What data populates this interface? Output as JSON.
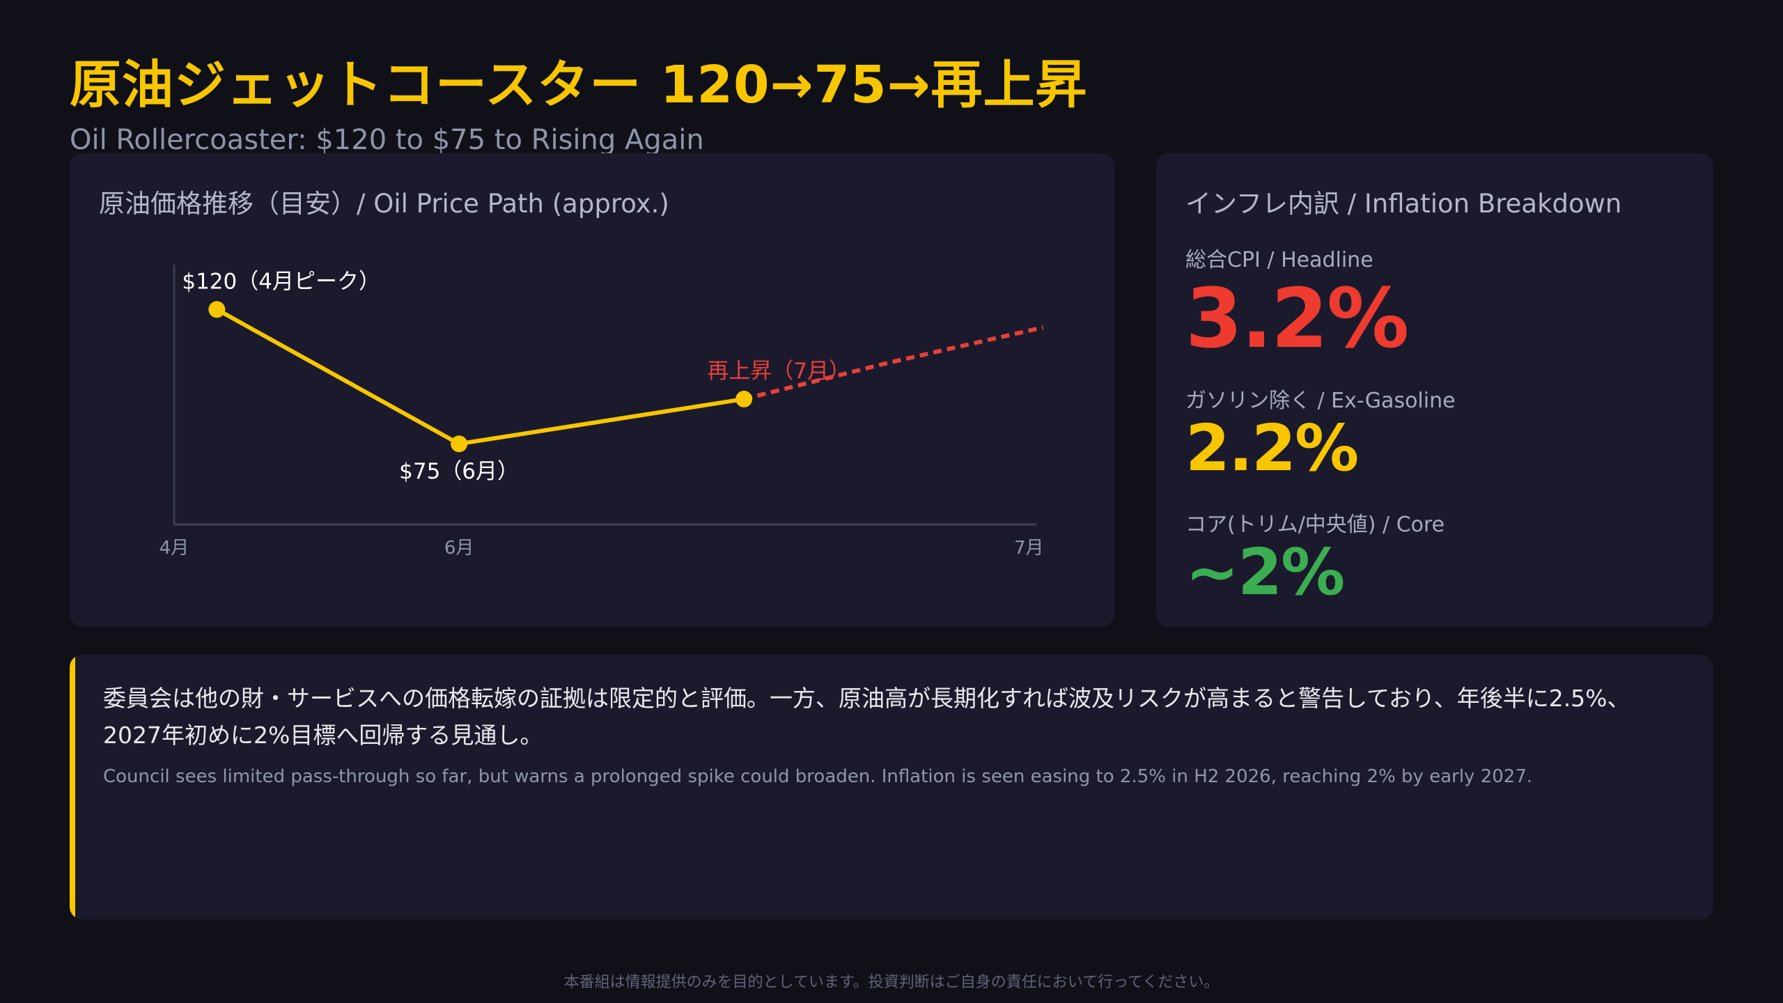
{
  "header": {
    "title": "原油ジェットコースター 120→75→再上昇",
    "subtitle": "Oil Rollercoaster: $120 to $75 to Rising Again"
  },
  "chart_data": {
    "type": "line",
    "title": "原油価格推移（目安）/ Oil Price Path (approx.)",
    "x_ticks": [
      "4月",
      "6月",
      "7月"
    ],
    "x_tick_positions": [
      4,
      6,
      10
    ],
    "series": [
      {
        "kind": "actual",
        "color": "#f7c600",
        "x": [
          4.3,
          6,
          8
        ],
        "y": [
          120,
          75,
          90
        ]
      },
      {
        "kind": "projection",
        "color": "#e8403a",
        "style": "dashed",
        "x": [
          8,
          9.0,
          10.1
        ],
        "y": [
          90,
          102,
          114
        ]
      }
    ],
    "annotations": [
      {
        "text": "$120（4月ピーク）",
        "x": 4.3,
        "y": 120,
        "position": "above-right",
        "color": "#ffffff"
      },
      {
        "text": "$75（6月）",
        "x": 6,
        "y": 75,
        "position": "below",
        "color": "#ffffff"
      },
      {
        "text": "再上昇（7月）",
        "x": 8,
        "y": 90,
        "position": "above",
        "color": "#e8403a"
      }
    ],
    "xlim": [
      4,
      10.6
    ],
    "ylim": [
      48,
      135
    ],
    "grid": false
  },
  "inflation": {
    "title": "インフレ内訳 / Inflation Breakdown",
    "metrics": [
      {
        "label": "総合CPI / Headline",
        "value": "3.2%",
        "color": "#ef3b2f"
      },
      {
        "label": "ガソリン除く / Ex-Gasoline",
        "value": "2.2%",
        "color": "#f7c600"
      },
      {
        "label": "コア(トリム/中央値) / Core",
        "value": "~2%",
        "color": "#3cae52"
      }
    ]
  },
  "note": {
    "ja": "委員会は他の財・サービスへの価格転嫁の証拠は限定的と評価。一方、原油高が長期化すれば波及リスクが高まると警告しており、年後半に2.5%、2027年初めに2%目標へ回帰する見通し。",
    "en": "Council sees limited pass-through so far, but warns a prolonged spike could broaden. Inflation is seen easing to 2.5% in H2 2026, reaching 2% by early 2027."
  },
  "footer": {
    "disclaimer": "本番組は情報提供のみを目的としています。投資判断はご自身の責任において行ってください。"
  }
}
